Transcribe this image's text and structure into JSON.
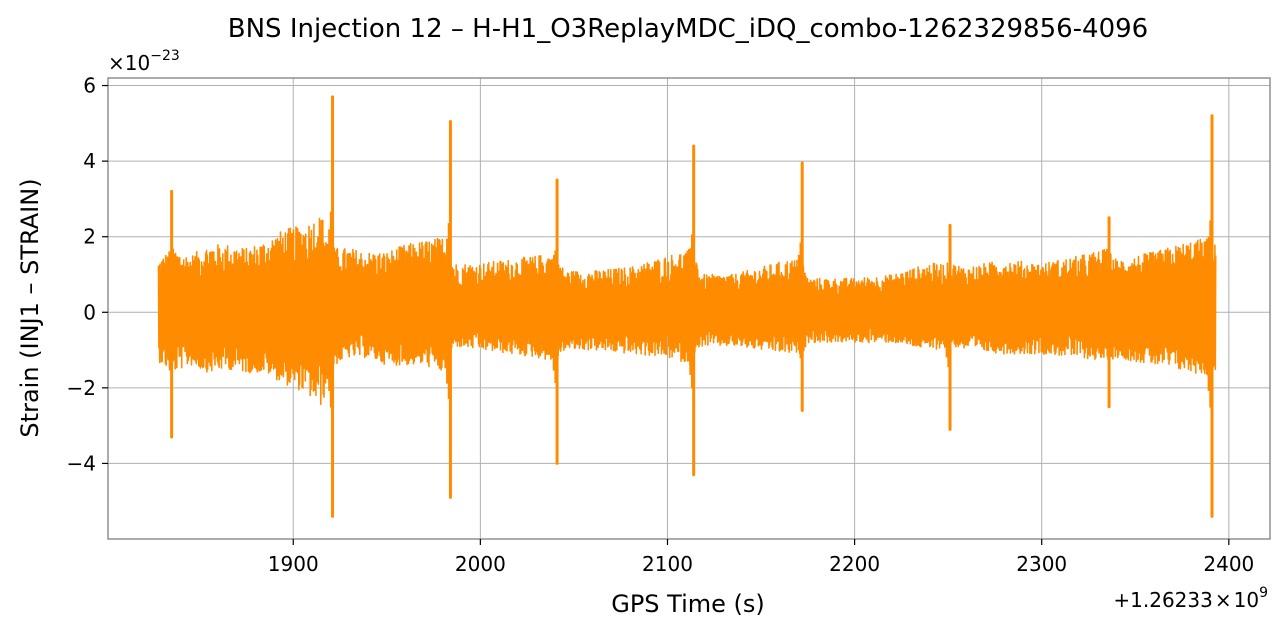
{
  "chart_data": {
    "type": "line",
    "title": "BNS Injection 12 – H-H1_O3ReplayMDC_iDQ_combo-1262329856-4096",
    "xlabel": "GPS Time (s)",
    "ylabel": "Strain (INJ1 – STRAIN)",
    "x_offset_label": {
      "base": "+1.26233",
      "times": "×",
      "mant": "10",
      "exp": "9"
    },
    "y_scale_label": {
      "times": "×",
      "mant": "10",
      "exp": "−23"
    },
    "x_ticks": [
      1900,
      2000,
      2100,
      2200,
      2300,
      2400
    ],
    "x_tick_labels": [
      "1900",
      "2000",
      "2100",
      "2200",
      "2300",
      "2400"
    ],
    "y_ticks": [
      -4,
      -2,
      0,
      2,
      4,
      6
    ],
    "y_tick_labels": [
      "−4",
      "−2",
      "0",
      "2",
      "4",
      "6"
    ],
    "xlim": [
      1801,
      2422
    ],
    "ylim": [
      -6.0,
      6.2
    ],
    "grid": true,
    "color": "#ff8c00",
    "series": [
      {
        "x_range": [
          1828,
          2393
        ],
        "envelope": [
          [
            1828,
            -1.3,
            1.4
          ],
          [
            1835,
            -1.6,
            1.7
          ],
          [
            1845,
            -1.4,
            1.5
          ],
          [
            1855,
            -1.6,
            1.8
          ],
          [
            1865,
            -1.5,
            1.8
          ],
          [
            1875,
            -1.6,
            1.7
          ],
          [
            1885,
            -1.6,
            1.9
          ],
          [
            1895,
            -1.9,
            2.2
          ],
          [
            1905,
            -2.1,
            2.3
          ],
          [
            1915,
            -2.5,
            2.6
          ],
          [
            1922,
            -1.4,
            1.7
          ],
          [
            1930,
            -1.2,
            1.7
          ],
          [
            1940,
            -1.2,
            1.6
          ],
          [
            1950,
            -1.4,
            1.6
          ],
          [
            1960,
            -1.4,
            1.8
          ],
          [
            1970,
            -1.4,
            1.9
          ],
          [
            1980,
            -1.6,
            2.0
          ],
          [
            1986,
            -0.9,
            1.3
          ],
          [
            2000,
            -1.0,
            1.3
          ],
          [
            2015,
            -1.1,
            1.4
          ],
          [
            2030,
            -1.2,
            1.5
          ],
          [
            2040,
            -1.3,
            1.6
          ],
          [
            2045,
            -1.0,
            1.1
          ],
          [
            2060,
            -1.0,
            1.1
          ],
          [
            2080,
            -1.1,
            1.2
          ],
          [
            2100,
            -1.2,
            1.5
          ],
          [
            2114,
            -1.4,
            1.7
          ],
          [
            2118,
            -0.9,
            1.0
          ],
          [
            2135,
            -0.9,
            1.0
          ],
          [
            2150,
            -1.0,
            1.2
          ],
          [
            2165,
            -1.1,
            1.4
          ],
          [
            2172,
            -1.1,
            1.4
          ],
          [
            2175,
            -0.8,
            0.9
          ],
          [
            2200,
            -0.8,
            0.9
          ],
          [
            2220,
            -0.8,
            1.0
          ],
          [
            2240,
            -1.0,
            1.3
          ],
          [
            2252,
            -0.9,
            1.3
          ],
          [
            2260,
            -1.0,
            1.2
          ],
          [
            2280,
            -1.1,
            1.4
          ],
          [
            2300,
            -1.1,
            1.3
          ],
          [
            2320,
            -1.2,
            1.5
          ],
          [
            2336,
            -1.3,
            1.7
          ],
          [
            2340,
            -1.2,
            1.4
          ],
          [
            2360,
            -1.4,
            1.6
          ],
          [
            2380,
            -1.6,
            1.9
          ],
          [
            2393,
            -1.7,
            2.0
          ]
        ],
        "spikes": [
          {
            "x": 1835,
            "y_max": 3.2,
            "y_min": -3.3
          },
          {
            "x": 1921,
            "y_max": 5.7,
            "y_min": -5.4
          },
          {
            "x": 1984,
            "y_max": 5.05,
            "y_min": -4.9
          },
          {
            "x": 2041,
            "y_max": 3.5,
            "y_min": -4.0
          },
          {
            "x": 2114,
            "y_max": 4.4,
            "y_min": -4.3
          },
          {
            "x": 2172,
            "y_max": 3.95,
            "y_min": -2.6
          },
          {
            "x": 2251,
            "y_max": 2.3,
            "y_min": -3.1
          },
          {
            "x": 2336,
            "y_max": 2.5,
            "y_min": -2.5
          },
          {
            "x": 2391,
            "y_max": 5.2,
            "y_min": -5.4
          }
        ]
      }
    ]
  }
}
